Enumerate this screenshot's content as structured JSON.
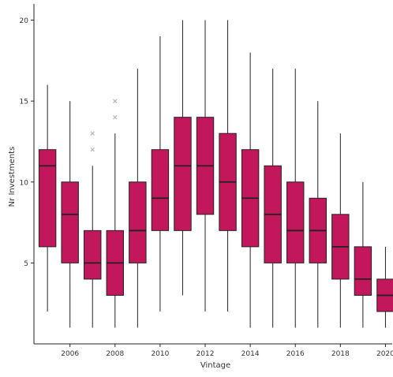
{
  "chart_data": {
    "type": "boxplot",
    "xlabel": "Vintage",
    "ylabel": "Nr Investments",
    "ylim": [
      0,
      21
    ],
    "xlim": [
      2004.4,
      2020.3
    ],
    "yticks": [
      5,
      10,
      15,
      20
    ],
    "xticks": [
      2006,
      2008,
      2010,
      2012,
      2014,
      2016,
      2018,
      2020
    ],
    "grid": false,
    "legend": "none",
    "colors": {
      "box_fill": "#c2185b",
      "box_stroke": "#222222",
      "outlier": "#b0b0b0",
      "axis": "#222222"
    },
    "boxes": [
      {
        "x": 2005,
        "whisker_low": 2,
        "q1": 6,
        "median": 11,
        "q3": 12,
        "whisker_high": 16,
        "outliers": []
      },
      {
        "x": 2006,
        "whisker_low": 1,
        "q1": 5,
        "median": 8,
        "q3": 10,
        "whisker_high": 15,
        "outliers": []
      },
      {
        "x": 2007,
        "whisker_low": 1,
        "q1": 4,
        "median": 5,
        "q3": 7,
        "whisker_high": 11,
        "outliers": [
          12,
          13
        ]
      },
      {
        "x": 2008,
        "whisker_low": 1,
        "q1": 3,
        "median": 5,
        "q3": 7,
        "whisker_high": 13,
        "outliers": [
          14,
          15
        ]
      },
      {
        "x": 2009,
        "whisker_low": 1,
        "q1": 5,
        "median": 7,
        "q3": 10,
        "whisker_high": 17,
        "outliers": []
      },
      {
        "x": 2010,
        "whisker_low": 2,
        "q1": 7,
        "median": 9,
        "q3": 12,
        "whisker_high": 19,
        "outliers": []
      },
      {
        "x": 2011,
        "whisker_low": 3,
        "q1": 7,
        "median": 11,
        "q3": 14,
        "whisker_high": 20,
        "outliers": []
      },
      {
        "x": 2012,
        "whisker_low": 2,
        "q1": 8,
        "median": 11,
        "q3": 14,
        "whisker_high": 20,
        "outliers": []
      },
      {
        "x": 2013,
        "whisker_low": 2,
        "q1": 7,
        "median": 10,
        "q3": 13,
        "whisker_high": 20,
        "outliers": []
      },
      {
        "x": 2014,
        "whisker_low": 1,
        "q1": 6,
        "median": 9,
        "q3": 12,
        "whisker_high": 18,
        "outliers": []
      },
      {
        "x": 2015,
        "whisker_low": 1,
        "q1": 5,
        "median": 8,
        "q3": 11,
        "whisker_high": 17,
        "outliers": []
      },
      {
        "x": 2016,
        "whisker_low": 1,
        "q1": 5,
        "median": 7,
        "q3": 10,
        "whisker_high": 17,
        "outliers": []
      },
      {
        "x": 2017,
        "whisker_low": 1,
        "q1": 5,
        "median": 7,
        "q3": 9,
        "whisker_high": 15,
        "outliers": []
      },
      {
        "x": 2018,
        "whisker_low": 1,
        "q1": 4,
        "median": 6,
        "q3": 8,
        "whisker_high": 13,
        "outliers": []
      },
      {
        "x": 2019,
        "whisker_low": 1,
        "q1": 3,
        "median": 4,
        "q3": 6,
        "whisker_high": 10,
        "outliers": []
      },
      {
        "x": 2020,
        "whisker_low": 1,
        "q1": 2,
        "median": 3,
        "q3": 4,
        "whisker_high": 6,
        "outliers": []
      }
    ]
  }
}
